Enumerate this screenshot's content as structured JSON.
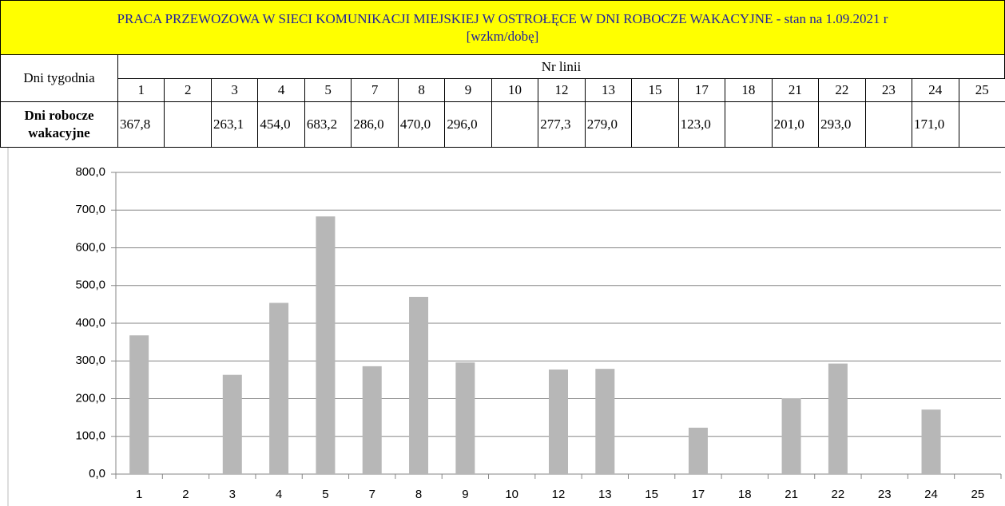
{
  "table": {
    "title": "PRACA PRZEWOZOWA W  SIECI KOMUNIKACJI MIEJSKIEJ W OSTROŁĘCE W DNI ROBOCZE WAKACYJNE -  stan na 1.09.2021 r",
    "unit": "[wzkm/dobę]",
    "row_header": "Dni tygodnia",
    "group_header": "Nr linii",
    "columns": [
      "1",
      "2",
      "3",
      "4",
      "5",
      "7",
      "8",
      "9",
      "10",
      "12",
      "13",
      "15",
      "17",
      "18",
      "21",
      "22",
      "23",
      "24",
      "25"
    ],
    "row_label": "Dni robocze wakacyjne",
    "cells": [
      "367,8",
      null,
      "263,1",
      "454,0",
      "683,2",
      "286,0",
      "470,0",
      "296,0",
      null,
      "277,3",
      "279,0",
      null,
      "123,0",
      null,
      "201,0",
      "293,0",
      null,
      "171,0",
      null
    ]
  },
  "chart_data": {
    "type": "bar",
    "categories": [
      "1",
      "2",
      "3",
      "4",
      "5",
      "7",
      "8",
      "9",
      "10",
      "12",
      "13",
      "15",
      "17",
      "18",
      "21",
      "22",
      "23",
      "24",
      "25"
    ],
    "values": [
      367.8,
      null,
      263.1,
      454.0,
      683.2,
      286.0,
      470.0,
      296.0,
      null,
      277.3,
      279.0,
      null,
      123.0,
      null,
      201.0,
      293.0,
      null,
      171.0,
      null
    ],
    "color": "#b7b7b7",
    "ylim": [
      0,
      800
    ],
    "yticks": [
      {
        "value": 0,
        "label": "0,0"
      },
      {
        "value": 100,
        "label": "100,0"
      },
      {
        "value": 200,
        "label": "200,0"
      },
      {
        "value": 300,
        "label": "300,0"
      },
      {
        "value": 400,
        "label": "400,0"
      },
      {
        "value": 500,
        "label": "500,0"
      },
      {
        "value": 600,
        "label": "600,0"
      },
      {
        "value": 700,
        "label": "700,0"
      },
      {
        "value": 800,
        "label": "800,0"
      }
    ],
    "grid": true
  }
}
